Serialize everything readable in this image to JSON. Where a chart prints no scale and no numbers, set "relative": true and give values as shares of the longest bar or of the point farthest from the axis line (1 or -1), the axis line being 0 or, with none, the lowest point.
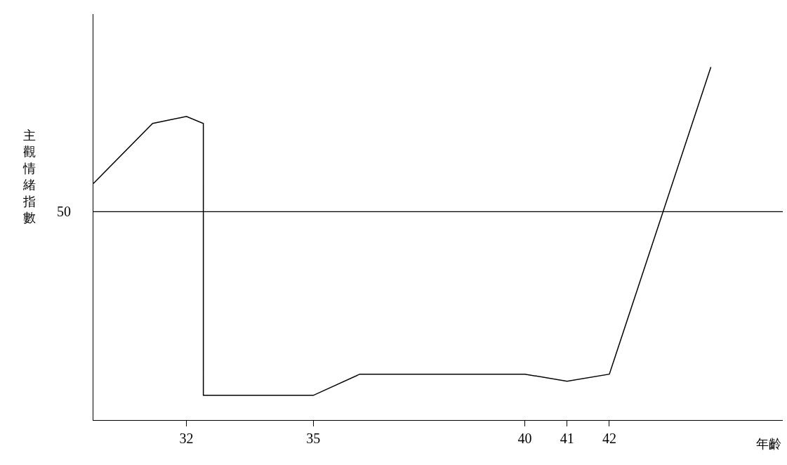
{
  "chart_data": {
    "type": "line",
    "relative": true,
    "xlabel": "年齡",
    "ylabel": "主觀情緒指數",
    "x": [
      29.8,
      31.2,
      32.0,
      32.4,
      32.4,
      35.0,
      36.1,
      40.0,
      41.0,
      42.0,
      44.4
    ],
    "series": [
      {
        "color": "#000000",
        "values": [
          0.67,
          0.84,
          0.86,
          0.84,
          0.07,
          0.07,
          0.13,
          0.13,
          0.11,
          0.13,
          1.0
        ]
      }
    ],
    "xlim": [
      29.8,
      46.1
    ],
    "xticks": [
      32,
      35,
      40,
      41,
      42
    ],
    "ref_lines": [
      {
        "axis": "y",
        "value": 0.59,
        "color": "#000000"
      }
    ],
    "annotations": [
      "50"
    ],
    "marker": "none",
    "line_style": "solid"
  }
}
